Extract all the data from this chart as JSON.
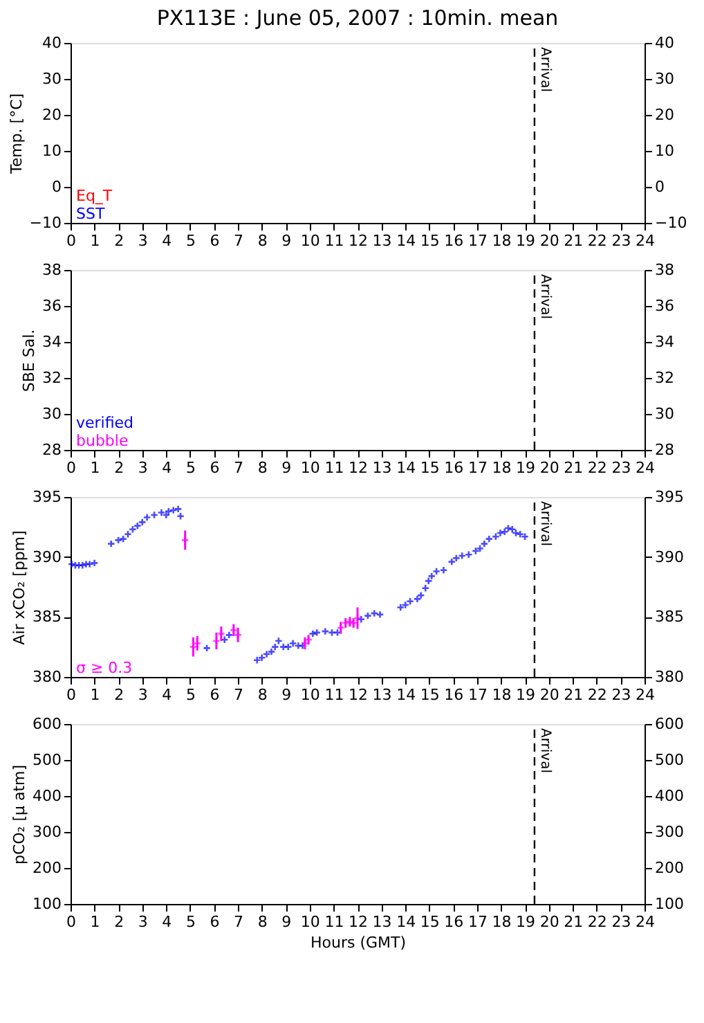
{
  "chart_data": [
    {
      "type": "scatter",
      "title": "PX113E : June 05, 2007 : 10min. mean",
      "ylabel": "Temp. [°C]",
      "xlim": [
        0,
        24
      ],
      "xticks": [
        0,
        1,
        2,
        3,
        4,
        5,
        6,
        7,
        8,
        9,
        10,
        11,
        12,
        13,
        14,
        15,
        16,
        17,
        18,
        19,
        20,
        21,
        22,
        23,
        24
      ],
      "ylim": [
        -10,
        40
      ],
      "yticks": [
        -10,
        0,
        10,
        20,
        30,
        40
      ],
      "y2lim": [
        -10,
        40
      ],
      "y2ticks": [
        -10,
        0,
        10,
        20,
        30,
        40
      ],
      "grid": false,
      "marker": "cross",
      "series": [
        {
          "name": "Eq_T",
          "color": "#ff0000",
          "x": [
            null
          ],
          "values": [
            null
          ]
        },
        {
          "name": "SST",
          "color": "#0000ff",
          "x": [
            null
          ],
          "values": [
            null
          ]
        }
      ],
      "ref_lines": [
        {
          "axis": "x",
          "value": 19.4,
          "label": "Arrival",
          "line_style": "dashed",
          "color": "#000000"
        }
      ]
    },
    {
      "type": "scatter",
      "ylabel": "SBE Sal.",
      "xlim": [
        0,
        24
      ],
      "xticks": [
        0,
        1,
        2,
        3,
        4,
        5,
        6,
        7,
        8,
        9,
        10,
        11,
        12,
        13,
        14,
        15,
        16,
        17,
        18,
        19,
        20,
        21,
        22,
        23,
        24
      ],
      "ylim": [
        28,
        38
      ],
      "yticks": [
        28,
        30,
        32,
        34,
        36,
        38
      ],
      "y2lim": [
        28,
        38
      ],
      "y2ticks": [
        28,
        30,
        32,
        34,
        36,
        38
      ],
      "grid": false,
      "marker": "cross",
      "series": [
        {
          "name": "verified",
          "color": "#0000ff",
          "x": [
            null
          ],
          "values": [
            null
          ]
        },
        {
          "name": "bubble",
          "color": "#ff00ff",
          "x": [
            null
          ],
          "values": [
            null
          ]
        }
      ],
      "ref_lines": [
        {
          "axis": "x",
          "value": 19.4,
          "label": "Arrival",
          "line_style": "dashed",
          "color": "#000000"
        }
      ]
    },
    {
      "type": "scatter",
      "ylabel": "Air xCO₂ [ppm]",
      "xlim": [
        0,
        24
      ],
      "xticks": [
        0,
        1,
        2,
        3,
        4,
        5,
        6,
        7,
        8,
        9,
        10,
        11,
        12,
        13,
        14,
        15,
        16,
        17,
        18,
        19,
        20,
        21,
        22,
        23,
        24
      ],
      "ylim": [
        380,
        395
      ],
      "yticks": [
        380,
        385,
        390,
        395
      ],
      "y2lim": [
        380,
        395
      ],
      "y2ticks": [
        380,
        385,
        390,
        395
      ],
      "grid": false,
      "marker": "cross",
      "series": [
        {
          "color": "#0000ff",
          "x": [
            0.05,
            0.2,
            0.35,
            0.5,
            0.65,
            0.8,
            1.0,
            1.7,
            2.0,
            2.2,
            2.4,
            2.6,
            2.8,
            3.0,
            3.2,
            3.5,
            3.8,
            4.0,
            4.1,
            4.3,
            4.5,
            4.6,
            5.7,
            6.44,
            6.63,
            7.8,
            8.0,
            8.2,
            8.4,
            8.55,
            8.7,
            8.9,
            9.1,
            9.3,
            9.52,
            9.7,
            10.13,
            10.3,
            10.65,
            10.93,
            11.16,
            12.15,
            12.43,
            12.7,
            12.94,
            13.8,
            14.0,
            14.2,
            14.5,
            14.65,
            14.84,
            14.97,
            15.1,
            15.3,
            15.6,
            15.94,
            16.13,
            16.37,
            16.65,
            16.94,
            17.12,
            17.3,
            17.5,
            17.78,
            17.97,
            18.15,
            18.3,
            18.47,
            18.62,
            18.8,
            19.0
          ],
          "values": [
            389.4,
            389.3,
            389.3,
            389.3,
            389.4,
            389.4,
            389.5,
            391.1,
            391.4,
            391.5,
            391.9,
            392.3,
            392.6,
            392.9,
            393.3,
            393.5,
            393.7,
            393.5,
            393.8,
            393.9,
            394.0,
            393.4,
            382.4,
            383.1,
            383.5,
            381.4,
            381.6,
            381.9,
            382.1,
            382.5,
            383.0,
            382.5,
            382.5,
            382.8,
            382.6,
            382.6,
            383.6,
            383.7,
            383.8,
            383.7,
            383.7,
            384.8,
            385.1,
            385.3,
            385.2,
            385.8,
            386.0,
            386.3,
            386.5,
            386.8,
            387.4,
            388.0,
            388.4,
            388.8,
            388.9,
            389.6,
            389.9,
            390.1,
            390.2,
            390.5,
            390.7,
            391.1,
            391.5,
            391.7,
            392.0,
            392.1,
            392.4,
            392.3,
            392.0,
            391.9,
            391.7
          ]
        },
        {
          "name": "σ ≥ 0.3",
          "color": "#ff00ff",
          "x": [
            4.79,
            5.13,
            5.3,
            6.1,
            6.3,
            6.82,
            7.0,
            9.8,
            9.95,
            11.3,
            11.5,
            11.68,
            11.83,
            12.0
          ],
          "values": [
            391.4,
            382.5,
            382.8,
            383.0,
            383.6,
            383.9,
            383.5,
            382.8,
            383.1,
            384.1,
            384.5,
            384.6,
            384.5,
            384.9
          ],
          "errors": [
            0.8,
            0.8,
            0.6,
            0.7,
            0.6,
            0.5,
            0.6,
            0.5,
            0.4,
            0.5,
            0.4,
            0.4,
            0.4,
            0.9
          ]
        }
      ],
      "ref_lines": [
        {
          "axis": "x",
          "value": 19.4,
          "label": "Arrival",
          "line_style": "dashed",
          "color": "#000000"
        }
      ]
    },
    {
      "type": "scatter",
      "xlabel": "Hours (GMT)",
      "ylabel": "pCO₂ [μ atm]",
      "xlim": [
        0,
        24
      ],
      "xticks": [
        0,
        1,
        2,
        3,
        4,
        5,
        6,
        7,
        8,
        9,
        10,
        11,
        12,
        13,
        14,
        15,
        16,
        17,
        18,
        19,
        20,
        21,
        22,
        23,
        24
      ],
      "ylim": [
        100,
        600
      ],
      "yticks": [
        100,
        200,
        300,
        400,
        500,
        600
      ],
      "y2lim": [
        100,
        600
      ],
      "y2ticks": [
        100,
        200,
        300,
        400,
        500,
        600
      ],
      "grid": false,
      "marker": "cross",
      "ref_lines": [
        {
          "axis": "x",
          "value": 19.4,
          "label": "Arrival",
          "line_style": "dashed",
          "color": "#000000"
        }
      ]
    }
  ]
}
